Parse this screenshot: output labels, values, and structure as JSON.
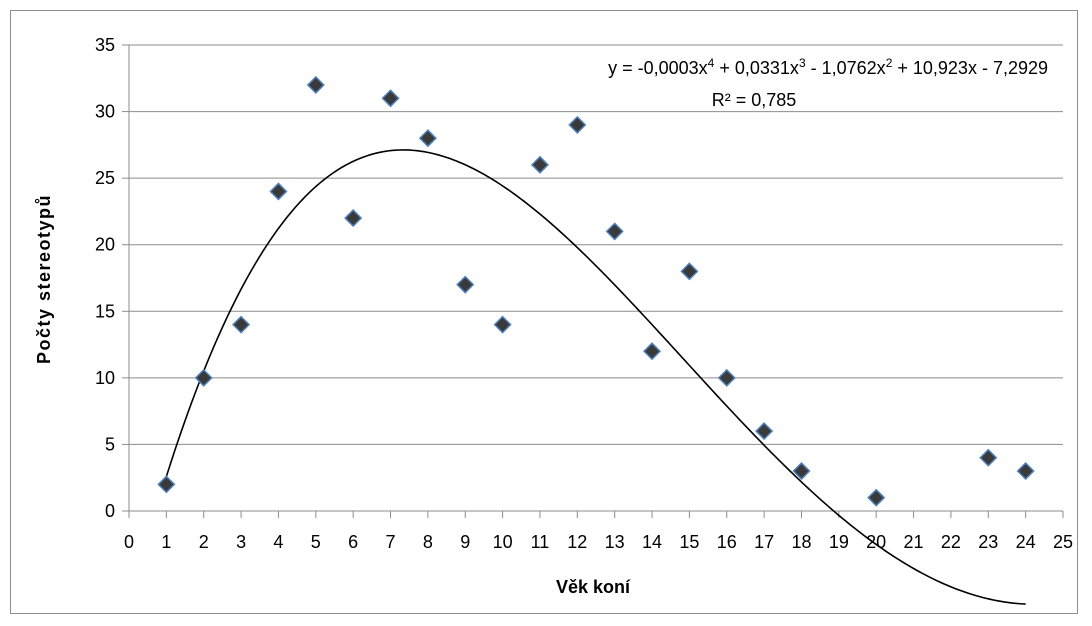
{
  "chart_data": {
    "type": "scatter",
    "title": "",
    "xlabel": "Věk koní",
    "ylabel": "Počty stereotypů",
    "xlim": [
      0,
      25
    ],
    "ylim": [
      0,
      35
    ],
    "x_ticks": [
      "0",
      "1",
      "2",
      "3",
      "4",
      "5",
      "6",
      "7",
      "8",
      "9",
      "10",
      "11",
      "12",
      "13",
      "14",
      "15",
      "16",
      "17",
      "18",
      "19",
      "20",
      "21",
      "22",
      "23",
      "24",
      "25"
    ],
    "y_ticks": [
      "0",
      "5",
      "10",
      "15",
      "20",
      "25",
      "30",
      "35"
    ],
    "grid": "horizontal",
    "marker": "diamond",
    "marker_fill": "#3a3a3a",
    "marker_stroke": "#4f81bd",
    "trendline": {
      "type": "polynomial",
      "order": 4,
      "coefficients": [
        -0.0003,
        0.0331,
        -1.0762,
        10.923,
        -7.2929
      ],
      "equation_parts": [
        "y = -0,0003x",
        "4",
        " + 0,0331x",
        "3",
        " - 1,0762x",
        "2",
        " + 10,923x - 7,2929"
      ],
      "r_squared_label": "R² = 0,785",
      "color": "#000000"
    },
    "points": [
      {
        "x": 1,
        "y": 2
      },
      {
        "x": 2,
        "y": 10
      },
      {
        "x": 3,
        "y": 14
      },
      {
        "x": 4,
        "y": 24
      },
      {
        "x": 5,
        "y": 32
      },
      {
        "x": 6,
        "y": 22
      },
      {
        "x": 7,
        "y": 31
      },
      {
        "x": 8,
        "y": 28
      },
      {
        "x": 9,
        "y": 17
      },
      {
        "x": 10,
        "y": 14
      },
      {
        "x": 11,
        "y": 26
      },
      {
        "x": 12,
        "y": 29
      },
      {
        "x": 13,
        "y": 21
      },
      {
        "x": 14,
        "y": 12
      },
      {
        "x": 15,
        "y": 18
      },
      {
        "x": 16,
        "y": 10
      },
      {
        "x": 17,
        "y": 6
      },
      {
        "x": 18,
        "y": 3
      },
      {
        "x": 20,
        "y": 1
      },
      {
        "x": 23,
        "y": 4
      },
      {
        "x": 24,
        "y": 3
      }
    ]
  }
}
